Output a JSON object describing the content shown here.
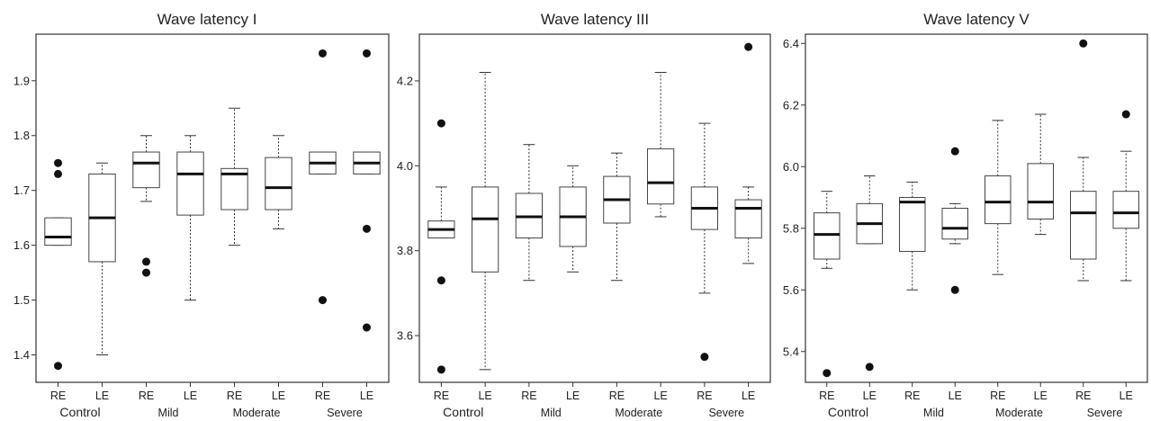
{
  "chart_data": [
    {
      "type": "box",
      "title": "Wave latency I",
      "ylim": [
        1.35,
        1.985
      ],
      "yticks": [
        1.4,
        1.5,
        1.6,
        1.7,
        1.8,
        1.9
      ],
      "ytick_labels": [
        "1.4",
        "1.5",
        "1.6",
        "1.7",
        "1.8",
        "1.9"
      ],
      "categories": [
        "RE",
        "LE",
        "RE",
        "LE",
        "RE",
        "LE",
        "RE",
        "LE"
      ],
      "groups": [
        "Control",
        "Mild",
        "Moderate",
        "Severe"
      ],
      "boxes": [
        {
          "whislo": 1.6,
          "q1": 1.6,
          "med": 1.615,
          "q3": 1.65,
          "whishi": 1.65,
          "fliers": [
            1.75,
            1.73,
            1.38
          ]
        },
        {
          "whislo": 1.4,
          "q1": 1.57,
          "med": 1.65,
          "q3": 1.73,
          "whishi": 1.75,
          "fliers": []
        },
        {
          "whislo": 1.68,
          "q1": 1.705,
          "med": 1.75,
          "q3": 1.77,
          "whishi": 1.8,
          "fliers": [
            1.57,
            1.55
          ]
        },
        {
          "whislo": 1.5,
          "q1": 1.655,
          "med": 1.73,
          "q3": 1.77,
          "whishi": 1.8,
          "fliers": []
        },
        {
          "whislo": 1.6,
          "q1": 1.665,
          "med": 1.73,
          "q3": 1.74,
          "whishi": 1.85,
          "fliers": []
        },
        {
          "whislo": 1.63,
          "q1": 1.665,
          "med": 1.705,
          "q3": 1.76,
          "whishi": 1.8,
          "fliers": []
        },
        {
          "whislo": 1.73,
          "q1": 1.73,
          "med": 1.75,
          "q3": 1.77,
          "whishi": 1.77,
          "fliers": [
            1.95,
            1.5
          ]
        },
        {
          "whislo": 1.73,
          "q1": 1.73,
          "med": 1.75,
          "q3": 1.77,
          "whishi": 1.77,
          "fliers": [
            1.95,
            1.63,
            1.45
          ]
        }
      ]
    },
    {
      "type": "box",
      "title": "Wave latency III",
      "ylim": [
        3.49,
        4.31
      ],
      "yticks": [
        3.6,
        3.8,
        4.0,
        4.2
      ],
      "ytick_labels": [
        "3.6",
        "3.8",
        "4.0",
        "4.2"
      ],
      "categories": [
        "RE",
        "LE",
        "RE",
        "LE",
        "RE",
        "LE",
        "RE",
        "LE"
      ],
      "groups": [
        "Control",
        "Mild",
        "Moderate",
        "Severe"
      ],
      "boxes": [
        {
          "whislo": 3.83,
          "q1": 3.83,
          "med": 3.85,
          "q3": 3.87,
          "whishi": 3.95,
          "fliers": [
            4.1,
            3.73,
            3.52
          ]
        },
        {
          "whislo": 3.52,
          "q1": 3.75,
          "med": 3.875,
          "q3": 3.95,
          "whishi": 4.22,
          "fliers": []
        },
        {
          "whislo": 3.73,
          "q1": 3.83,
          "med": 3.88,
          "q3": 3.935,
          "whishi": 4.05,
          "fliers": []
        },
        {
          "whislo": 3.75,
          "q1": 3.81,
          "med": 3.88,
          "q3": 3.95,
          "whishi": 4.0,
          "fliers": []
        },
        {
          "whislo": 3.73,
          "q1": 3.865,
          "med": 3.92,
          "q3": 3.975,
          "whishi": 4.03,
          "fliers": []
        },
        {
          "whislo": 3.88,
          "q1": 3.91,
          "med": 3.96,
          "q3": 4.04,
          "whishi": 4.22,
          "fliers": []
        },
        {
          "whislo": 3.7,
          "q1": 3.85,
          "med": 3.9,
          "q3": 3.95,
          "whishi": 4.1,
          "fliers": [
            3.55
          ]
        },
        {
          "whislo": 3.77,
          "q1": 3.83,
          "med": 3.9,
          "q3": 3.92,
          "whishi": 3.95,
          "fliers": [
            4.28
          ]
        }
      ]
    },
    {
      "type": "box",
      "title": "Wave latency V",
      "ylim": [
        5.3,
        6.43
      ],
      "yticks": [
        5.4,
        5.6,
        5.8,
        6.0,
        6.2,
        6.4
      ],
      "ytick_labels": [
        "5.4",
        "5.6",
        "5.8",
        "6.0",
        "6.2",
        "6.4"
      ],
      "categories": [
        "RE",
        "LE",
        "RE",
        "LE",
        "RE",
        "LE",
        "RE",
        "LE"
      ],
      "groups": [
        "Control",
        "Mild",
        "Moderate",
        "Severe"
      ],
      "boxes": [
        {
          "whislo": 5.67,
          "q1": 5.7,
          "med": 5.78,
          "q3": 5.85,
          "whishi": 5.92,
          "fliers": [
            5.33
          ]
        },
        {
          "whislo": 5.75,
          "q1": 5.75,
          "med": 5.815,
          "q3": 5.88,
          "whishi": 5.97,
          "fliers": [
            5.35
          ]
        },
        {
          "whislo": 5.6,
          "q1": 5.725,
          "med": 5.885,
          "q3": 5.9,
          "whishi": 5.95,
          "fliers": []
        },
        {
          "whislo": 5.75,
          "q1": 5.765,
          "med": 5.8,
          "q3": 5.865,
          "whishi": 5.88,
          "fliers": [
            6.05,
            5.6
          ]
        },
        {
          "whislo": 5.65,
          "q1": 5.815,
          "med": 5.885,
          "q3": 5.97,
          "whishi": 6.15,
          "fliers": []
        },
        {
          "whislo": 5.78,
          "q1": 5.83,
          "med": 5.885,
          "q3": 6.01,
          "whishi": 6.17,
          "fliers": []
        },
        {
          "whislo": 5.63,
          "q1": 5.7,
          "med": 5.85,
          "q3": 5.92,
          "whishi": 6.03,
          "fliers": [
            6.4
          ]
        },
        {
          "whislo": 5.63,
          "q1": 5.8,
          "med": 5.85,
          "q3": 5.92,
          "whishi": 6.05,
          "fliers": [
            6.17
          ]
        }
      ]
    }
  ]
}
